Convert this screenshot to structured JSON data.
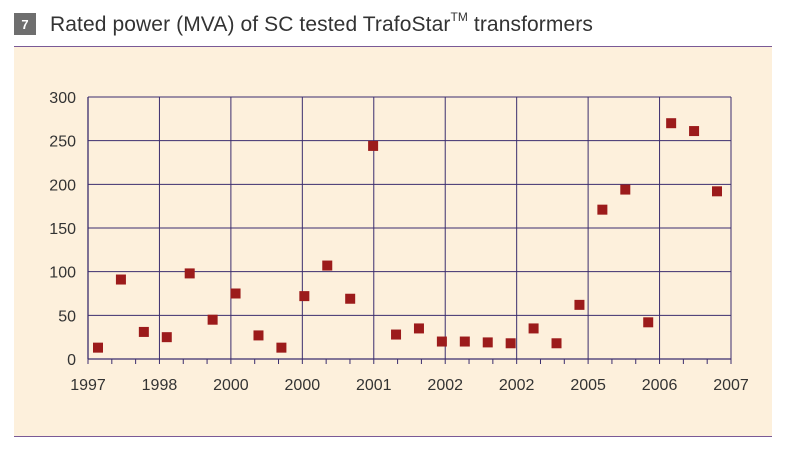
{
  "figure": {
    "badge": "7",
    "title_main": "Rated power (MVA) of SC tested TrafoStar",
    "title_sup": "TM",
    "title_tail": " transformers"
  },
  "colors": {
    "panel_bg": "#fdf0dc",
    "grid": "#3b2d6e",
    "marker": "#9c1b1b",
    "rule": "#7a5a96"
  },
  "chart_data": {
    "type": "scatter",
    "title": "Rated power (MVA) of SC tested TrafoStar™ transformers",
    "xlabel": "",
    "ylabel": "",
    "ylim": [
      0,
      300
    ],
    "yticks": [
      "0",
      "50",
      "100",
      "150",
      "200",
      "250",
      "300"
    ],
    "xticks": [
      "1997",
      "1998",
      "2000",
      "2000",
      "2001",
      "2002",
      "2002",
      "2005",
      "2006",
      "2007"
    ],
    "grid": true,
    "legend": "none",
    "series": [
      {
        "values": [
          13,
          91,
          31,
          25,
          98,
          45,
          75,
          27,
          13,
          72,
          107,
          69,
          244,
          28,
          35,
          20,
          20,
          19,
          18,
          35,
          18,
          62,
          171,
          194,
          42,
          270,
          261,
          192
        ]
      }
    ]
  }
}
